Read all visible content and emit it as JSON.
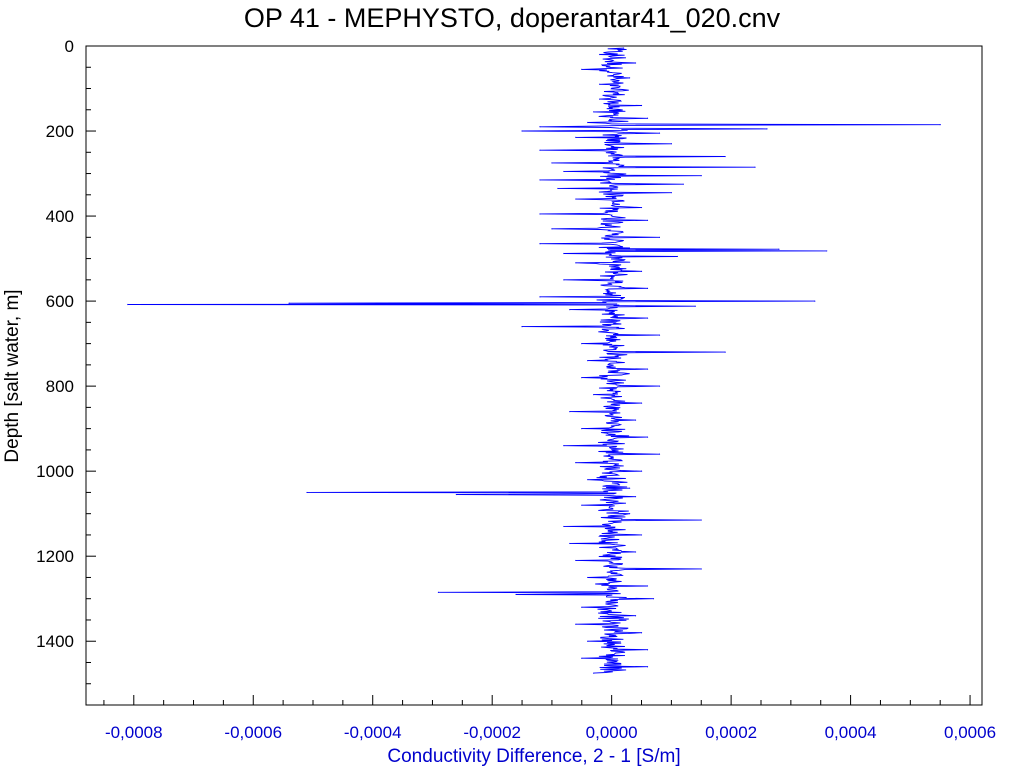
{
  "chart_data": {
    "type": "line",
    "title": "OP 41 - MEPHYSTO, doperantar41_020.cnv",
    "xlabel": "Conductivity Difference, 2 - 1 [S/m]",
    "ylabel": "Depth [salt water, m]",
    "xlim": [
      -0.00088,
      0.00062
    ],
    "ylim": [
      1550,
      0
    ],
    "y_inverted": true,
    "grid": false,
    "x_ticks": [
      -0.0008,
      -0.0006,
      -0.0004,
      -0.0002,
      0.0,
      0.0002,
      0.0004,
      0.0006
    ],
    "x_tick_labels": [
      "-0,0008",
      "-0,0006",
      "-0,0004",
      "-0,0002",
      "0,0000",
      "0,0002",
      "0,0004",
      "0,0006"
    ],
    "y_ticks": [
      0,
      200,
      400,
      600,
      800,
      1000,
      1200,
      1400
    ],
    "y_tick_labels": [
      "0",
      "200",
      "400",
      "600",
      "800",
      "1000",
      "1200",
      "1400"
    ],
    "series": [
      {
        "color": "#0000ff",
        "depth": [
          5,
          20,
          40,
          55,
          75,
          90,
          110,
          125,
          140,
          155,
          170,
          180,
          185,
          190,
          195,
          200,
          205,
          215,
          230,
          245,
          260,
          275,
          285,
          295,
          305,
          315,
          325,
          335,
          345,
          360,
          380,
          395,
          410,
          430,
          450,
          465,
          478,
          482,
          488,
          495,
          510,
          530,
          550,
          570,
          590,
          600,
          605,
          608,
          612,
          620,
          640,
          660,
          680,
          700,
          720,
          740,
          760,
          780,
          800,
          820,
          840,
          860,
          880,
          900,
          920,
          940,
          960,
          980,
          1000,
          1020,
          1040,
          1050,
          1055,
          1060,
          1080,
          1100,
          1115,
          1130,
          1150,
          1170,
          1190,
          1210,
          1230,
          1250,
          1270,
          1285,
          1290,
          1300,
          1320,
          1340,
          1360,
          1380,
          1400,
          1420,
          1440,
          1460,
          1475
        ],
        "values": [
          2e-05,
          -2e-05,
          4e-05,
          -5e-05,
          3e-05,
          -2e-05,
          1e-05,
          -2e-05,
          5e-05,
          -3e-05,
          6e-05,
          -4e-05,
          0.00055,
          -0.00012,
          0.00026,
          -0.00015,
          8e-05,
          -6e-05,
          0.0001,
          -0.00012,
          0.00019,
          -0.0001,
          0.00024,
          -8e-05,
          0.00015,
          -0.00012,
          0.00012,
          -9e-05,
          0.0001,
          -6e-05,
          5e-05,
          -0.00012,
          6e-05,
          -0.0001,
          8e-05,
          -0.00012,
          0.00028,
          0.00036,
          -8e-05,
          0.00011,
          -6e-05,
          5e-05,
          -8e-05,
          6e-05,
          -0.00012,
          0.00034,
          -0.00054,
          -0.00081,
          0.00014,
          -7e-05,
          6e-05,
          -0.00015,
          8e-05,
          -5e-05,
          0.00019,
          -4e-05,
          6e-05,
          -5e-05,
          8e-05,
          -3e-05,
          5e-05,
          -7e-05,
          4e-05,
          -5e-05,
          6e-05,
          -8e-05,
          8e-05,
          -6e-05,
          5e-05,
          -4e-05,
          3e-05,
          -0.00051,
          -0.00026,
          4e-05,
          -5e-05,
          3e-05,
          0.00015,
          -8e-05,
          5e-05,
          -7e-05,
          4e-05,
          -6e-05,
          0.00015,
          -4e-05,
          6e-05,
          -0.00029,
          -0.00016,
          7e-05,
          -5e-05,
          4e-05,
          -6e-05,
          5e-05,
          -4e-05,
          6e-05,
          -5e-05,
          6e-05,
          -3e-05
        ]
      }
    ]
  }
}
